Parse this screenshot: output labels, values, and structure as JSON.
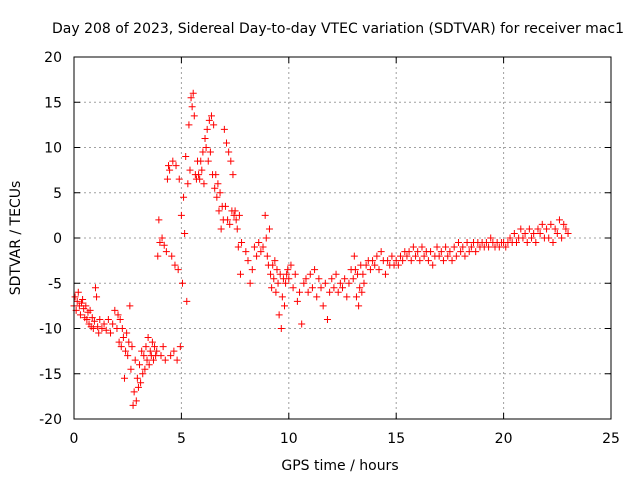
{
  "chart_data": {
    "type": "scatter",
    "title": "Day 208 of 2023, Sidereal Day-to-day VTEC variation (SDTVAR) for receiver mac1",
    "xlabel": "GPS time / hours",
    "ylabel": "SDTVAR / TECUs",
    "xlim": [
      0,
      25
    ],
    "ylim": [
      -20,
      20
    ],
    "xticks": [
      0,
      5,
      10,
      15,
      20,
      25
    ],
    "yticks": [
      -20,
      -15,
      -10,
      -5,
      0,
      5,
      10,
      15,
      20
    ],
    "xtick_labels": [
      "0",
      "5",
      "10",
      "15",
      "20",
      "25"
    ],
    "ytick_labels": [
      "-20",
      "-15",
      "-10",
      "-5",
      "0",
      "5",
      "10",
      "15",
      "20"
    ],
    "grid": true,
    "marker": "plus",
    "color": "#ff0000",
    "series": [
      {
        "name": "SDTVAR",
        "points": [
          [
            0.0,
            -7.5
          ],
          [
            0.05,
            -6.5
          ],
          [
            0.1,
            -8.0
          ],
          [
            0.15,
            -7.0
          ],
          [
            0.2,
            -6.0
          ],
          [
            0.25,
            -7.5
          ],
          [
            0.3,
            -8.5
          ],
          [
            0.35,
            -7.2
          ],
          [
            0.4,
            -6.8
          ],
          [
            0.45,
            -7.8
          ],
          [
            0.5,
            -8.8
          ],
          [
            0.55,
            -7.5
          ],
          [
            0.6,
            -9.0
          ],
          [
            0.65,
            -8.2
          ],
          [
            0.7,
            -9.5
          ],
          [
            0.75,
            -8.0
          ],
          [
            0.8,
            -9.8
          ],
          [
            0.85,
            -8.8
          ],
          [
            0.9,
            -10.0
          ],
          [
            0.95,
            -9.2
          ],
          [
            1.0,
            -5.5
          ],
          [
            1.05,
            -6.5
          ],
          [
            1.1,
            -9.8
          ],
          [
            1.15,
            -10.5
          ],
          [
            1.2,
            -9.0
          ],
          [
            1.3,
            -10.0
          ],
          [
            1.4,
            -9.5
          ],
          [
            1.5,
            -10.2
          ],
          [
            1.6,
            -9.0
          ],
          [
            1.7,
            -10.5
          ],
          [
            1.8,
            -9.5
          ],
          [
            1.9,
            -8.0
          ],
          [
            2.0,
            -10.0
          ],
          [
            2.05,
            -8.5
          ],
          [
            2.1,
            -11.5
          ],
          [
            2.15,
            -9.0
          ],
          [
            2.2,
            -12.0
          ],
          [
            2.25,
            -10.0
          ],
          [
            2.3,
            -11.0
          ],
          [
            2.35,
            -15.5
          ],
          [
            2.4,
            -12.5
          ],
          [
            2.45,
            -10.5
          ],
          [
            2.5,
            -13.0
          ],
          [
            2.55,
            -11.5
          ],
          [
            2.6,
            -7.5
          ],
          [
            2.65,
            -14.5
          ],
          [
            2.7,
            -12.0
          ],
          [
            2.75,
            -18.5
          ],
          [
            2.8,
            -17.0
          ],
          [
            2.85,
            -13.5
          ],
          [
            2.9,
            -18.0
          ],
          [
            2.95,
            -15.5
          ],
          [
            3.0,
            -16.5
          ],
          [
            3.05,
            -14.0
          ],
          [
            3.1,
            -16.0
          ],
          [
            3.15,
            -12.5
          ],
          [
            3.2,
            -15.0
          ],
          [
            3.25,
            -13.0
          ],
          [
            3.3,
            -14.5
          ],
          [
            3.35,
            -12.0
          ],
          [
            3.4,
            -13.5
          ],
          [
            3.45,
            -11.0
          ],
          [
            3.5,
            -14.0
          ],
          [
            3.55,
            -12.5
          ],
          [
            3.6,
            -13.0
          ],
          [
            3.65,
            -11.5
          ],
          [
            3.7,
            -13.5
          ],
          [
            3.75,
            -12.0
          ],
          [
            3.8,
            -13.0
          ],
          [
            3.85,
            -12.5
          ],
          [
            3.9,
            -2.0
          ],
          [
            3.95,
            2.0
          ],
          [
            4.0,
            -0.5
          ],
          [
            4.05,
            -13.0
          ],
          [
            4.1,
            0.0
          ],
          [
            4.15,
            -12.0
          ],
          [
            4.2,
            -0.8
          ],
          [
            4.25,
            -13.5
          ],
          [
            4.3,
            -1.5
          ],
          [
            4.35,
            6.5
          ],
          [
            4.4,
            8.0
          ],
          [
            4.45,
            7.5
          ],
          [
            4.5,
            -13.0
          ],
          [
            4.55,
            -2.0
          ],
          [
            4.6,
            8.5
          ],
          [
            4.65,
            -12.5
          ],
          [
            4.7,
            -3.0
          ],
          [
            4.75,
            8.0
          ],
          [
            4.8,
            -13.5
          ],
          [
            4.85,
            -3.5
          ],
          [
            4.9,
            6.5
          ],
          [
            4.95,
            -12.0
          ],
          [
            5.0,
            2.5
          ],
          [
            5.05,
            -5.0
          ],
          [
            5.1,
            4.5
          ],
          [
            5.15,
            0.5
          ],
          [
            5.2,
            9.0
          ],
          [
            5.25,
            -7.0
          ],
          [
            5.3,
            6.0
          ],
          [
            5.35,
            12.5
          ],
          [
            5.4,
            7.5
          ],
          [
            5.45,
            15.5
          ],
          [
            5.5,
            14.5
          ],
          [
            5.55,
            16.0
          ],
          [
            5.6,
            13.5
          ],
          [
            5.65,
            7.0
          ],
          [
            5.7,
            6.5
          ],
          [
            5.75,
            8.5
          ],
          [
            5.8,
            7.0
          ],
          [
            5.85,
            6.5
          ],
          [
            5.9,
            8.5
          ],
          [
            5.95,
            7.5
          ],
          [
            6.0,
            9.5
          ],
          [
            6.05,
            6.0
          ],
          [
            6.1,
            11.0
          ],
          [
            6.15,
            10.0
          ],
          [
            6.2,
            12.0
          ],
          [
            6.25,
            8.5
          ],
          [
            6.3,
            13.0
          ],
          [
            6.35,
            9.5
          ],
          [
            6.4,
            13.5
          ],
          [
            6.45,
            7.0
          ],
          [
            6.5,
            12.5
          ],
          [
            6.55,
            5.5
          ],
          [
            6.6,
            7.0
          ],
          [
            6.65,
            4.5
          ],
          [
            6.7,
            6.0
          ],
          [
            6.75,
            3.0
          ],
          [
            6.8,
            5.0
          ],
          [
            6.85,
            1.0
          ],
          [
            6.9,
            3.5
          ],
          [
            6.95,
            2.0
          ],
          [
            7.0,
            12.0
          ],
          [
            7.05,
            3.5
          ],
          [
            7.1,
            10.5
          ],
          [
            7.15,
            2.0
          ],
          [
            7.2,
            9.5
          ],
          [
            7.25,
            1.5
          ],
          [
            7.3,
            8.5
          ],
          [
            7.35,
            3.0
          ],
          [
            7.4,
            7.0
          ],
          [
            7.45,
            2.5
          ],
          [
            7.5,
            3.0
          ],
          [
            7.55,
            2.0
          ],
          [
            7.6,
            1.0
          ],
          [
            7.65,
            -1.0
          ],
          [
            7.7,
            2.5
          ],
          [
            7.75,
            -4.0
          ],
          [
            7.8,
            -0.5
          ],
          [
            8.0,
            -1.5
          ],
          [
            8.1,
            -2.5
          ],
          [
            8.2,
            -5.0
          ],
          [
            8.3,
            -3.5
          ],
          [
            8.4,
            -1.0
          ],
          [
            8.5,
            -2.0
          ],
          [
            8.6,
            -0.5
          ],
          [
            8.7,
            -1.5
          ],
          [
            8.8,
            -1.0
          ],
          [
            8.9,
            2.5
          ],
          [
            8.95,
            0.0
          ],
          [
            9.0,
            -2.0
          ],
          [
            9.05,
            -3.0
          ],
          [
            9.1,
            1.0
          ],
          [
            9.15,
            -4.0
          ],
          [
            9.2,
            -5.5
          ],
          [
            9.25,
            -3.0
          ],
          [
            9.3,
            -4.5
          ],
          [
            9.35,
            -2.5
          ],
          [
            9.4,
            -6.0
          ],
          [
            9.45,
            -3.5
          ],
          [
            9.5,
            -5.0
          ],
          [
            9.55,
            -8.5
          ],
          [
            9.6,
            -4.0
          ],
          [
            9.65,
            -10.0
          ],
          [
            9.7,
            -6.5
          ],
          [
            9.75,
            -4.5
          ],
          [
            9.8,
            -7.5
          ],
          [
            9.85,
            -5.0
          ],
          [
            9.9,
            -4.0
          ],
          [
            9.95,
            -3.5
          ],
          [
            10.0,
            -4.5
          ],
          [
            10.1,
            -3.0
          ],
          [
            10.2,
            -5.5
          ],
          [
            10.3,
            -4.0
          ],
          [
            10.4,
            -7.0
          ],
          [
            10.5,
            -6.0
          ],
          [
            10.6,
            -9.5
          ],
          [
            10.7,
            -5.0
          ],
          [
            10.8,
            -4.5
          ],
          [
            10.9,
            -6.0
          ],
          [
            11.0,
            -4.0
          ],
          [
            11.1,
            -5.5
          ],
          [
            11.2,
            -3.5
          ],
          [
            11.3,
            -6.5
          ],
          [
            11.4,
            -4.5
          ],
          [
            11.5,
            -5.5
          ],
          [
            11.6,
            -7.5
          ],
          [
            11.7,
            -5.0
          ],
          [
            11.8,
            -9.0
          ],
          [
            11.9,
            -6.0
          ],
          [
            12.0,
            -4.5
          ],
          [
            12.1,
            -5.5
          ],
          [
            12.2,
            -4.0
          ],
          [
            12.3,
            -6.0
          ],
          [
            12.4,
            -5.0
          ],
          [
            12.5,
            -5.5
          ],
          [
            12.6,
            -4.5
          ],
          [
            12.7,
            -6.5
          ],
          [
            12.8,
            -5.0
          ],
          [
            12.9,
            -3.5
          ],
          [
            13.0,
            -4.5
          ],
          [
            13.05,
            -2.0
          ],
          [
            13.1,
            -3.5
          ],
          [
            13.15,
            -6.5
          ],
          [
            13.2,
            -4.0
          ],
          [
            13.25,
            -7.5
          ],
          [
            13.3,
            -5.5
          ],
          [
            13.35,
            -3.0
          ],
          [
            13.4,
            -6.0
          ],
          [
            13.45,
            -4.0
          ],
          [
            13.5,
            -5.0
          ],
          [
            13.6,
            -3.0
          ],
          [
            13.7,
            -2.5
          ],
          [
            13.8,
            -3.5
          ],
          [
            13.9,
            -2.5
          ],
          [
            14.0,
            -3.0
          ],
          [
            14.1,
            -2.0
          ],
          [
            14.2,
            -3.5
          ],
          [
            14.3,
            -1.5
          ],
          [
            14.4,
            -2.5
          ],
          [
            14.5,
            -4.0
          ],
          [
            14.6,
            -2.5
          ],
          [
            14.7,
            -3.0
          ],
          [
            14.8,
            -2.0
          ],
          [
            14.9,
            -3.0
          ],
          [
            15.0,
            -2.5
          ],
          [
            15.1,
            -3.0
          ],
          [
            15.2,
            -2.0
          ],
          [
            15.3,
            -2.5
          ],
          [
            15.4,
            -1.5
          ],
          [
            15.5,
            -2.0
          ],
          [
            15.6,
            -1.5
          ],
          [
            15.7,
            -2.5
          ],
          [
            15.8,
            -1.0
          ],
          [
            15.9,
            -2.0
          ],
          [
            16.0,
            -1.5
          ],
          [
            16.1,
            -2.5
          ],
          [
            16.2,
            -1.0
          ],
          [
            16.3,
            -2.0
          ],
          [
            16.4,
            -1.5
          ],
          [
            16.5,
            -2.5
          ],
          [
            16.6,
            -1.5
          ],
          [
            16.7,
            -3.0
          ],
          [
            16.8,
            -2.0
          ],
          [
            16.9,
            -1.0
          ],
          [
            17.0,
            -2.0
          ],
          [
            17.1,
            -1.5
          ],
          [
            17.2,
            -2.5
          ],
          [
            17.3,
            -1.0
          ],
          [
            17.4,
            -2.0
          ],
          [
            17.5,
            -1.5
          ],
          [
            17.6,
            -2.5
          ],
          [
            17.7,
            -1.0
          ],
          [
            17.8,
            -2.0
          ],
          [
            17.9,
            -0.5
          ],
          [
            18.0,
            -1.5
          ],
          [
            18.1,
            -1.0
          ],
          [
            18.2,
            -2.0
          ],
          [
            18.3,
            -0.5
          ],
          [
            18.4,
            -1.5
          ],
          [
            18.5,
            -1.0
          ],
          [
            18.6,
            -0.5
          ],
          [
            18.7,
            -1.5
          ],
          [
            18.8,
            -0.5
          ],
          [
            18.9,
            -1.0
          ],
          [
            19.0,
            -0.5
          ],
          [
            19.1,
            -1.0
          ],
          [
            19.2,
            -0.5
          ],
          [
            19.3,
            -1.0
          ],
          [
            19.4,
            0.0
          ],
          [
            19.5,
            -0.5
          ],
          [
            19.6,
            -1.0
          ],
          [
            19.7,
            -0.5
          ],
          [
            19.8,
            -1.0
          ],
          [
            19.9,
            -0.5
          ],
          [
            20.0,
            -0.5
          ],
          [
            20.1,
            -1.0
          ],
          [
            20.2,
            -0.5
          ],
          [
            20.3,
            0.0
          ],
          [
            20.4,
            -0.5
          ],
          [
            20.5,
            0.5
          ],
          [
            20.6,
            -0.5
          ],
          [
            20.7,
            0.0
          ],
          [
            20.8,
            1.0
          ],
          [
            20.9,
            0.0
          ],
          [
            21.0,
            0.5
          ],
          [
            21.1,
            -0.5
          ],
          [
            21.2,
            1.0
          ],
          [
            21.3,
            0.0
          ],
          [
            21.4,
            0.5
          ],
          [
            21.5,
            -0.5
          ],
          [
            21.6,
            1.0
          ],
          [
            21.7,
            0.5
          ],
          [
            21.8,
            1.5
          ],
          [
            21.9,
            0.0
          ],
          [
            22.0,
            1.0
          ],
          [
            22.1,
            0.0
          ],
          [
            22.2,
            1.5
          ],
          [
            22.3,
            -0.5
          ],
          [
            22.4,
            1.0
          ],
          [
            22.5,
            0.5
          ],
          [
            22.6,
            2.0
          ],
          [
            22.7,
            0.0
          ],
          [
            22.8,
            1.5
          ],
          [
            22.9,
            1.0
          ],
          [
            23.0,
            0.5
          ]
        ]
      }
    ]
  }
}
